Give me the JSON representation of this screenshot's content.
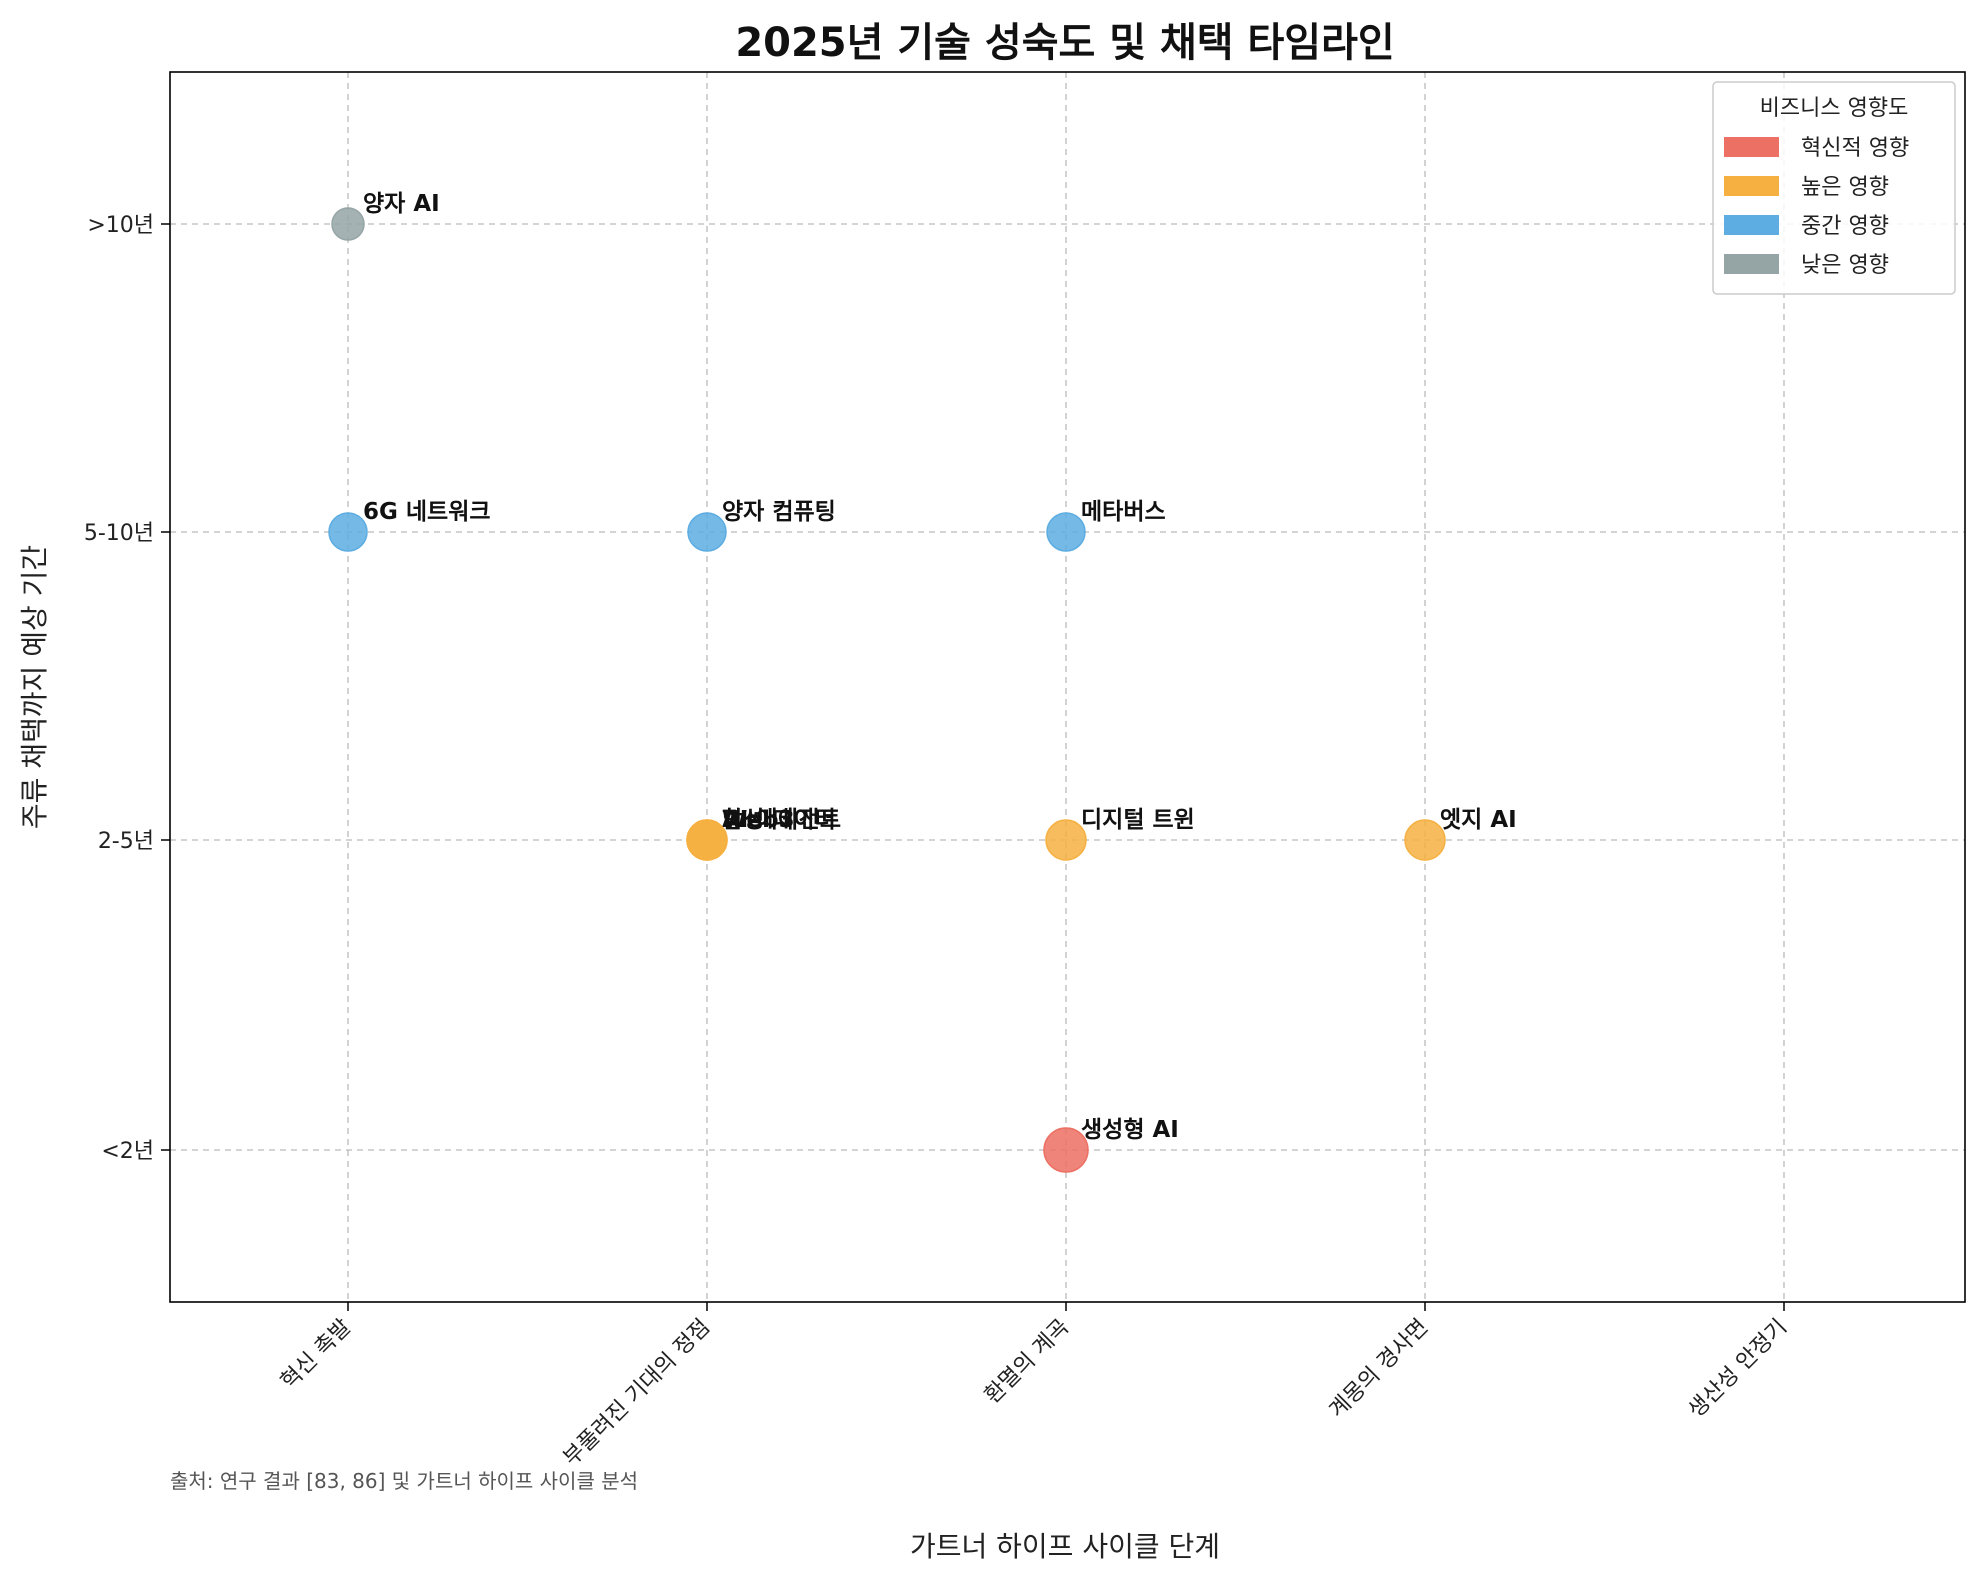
{
  "chart_data": {
    "type": "scatter",
    "title": "2025년 기술 성숙도 및 채택 타임라인",
    "xlabel": "가트너 하이프 사이클 단계",
    "ylabel": "주류 채택까지 예상 기간",
    "x_categories": [
      "혁신 촉발",
      "부풀려진 기대의 정점",
      "환멸의 계곡",
      "계몽의 경사면",
      "생산성 안정기"
    ],
    "y_categories": [
      "<2년",
      "2-5년",
      "5-10년",
      ">10년"
    ],
    "grid": true,
    "legend": {
      "title": "비즈니스 영향도",
      "placement": "top-right",
      "entries": [
        {
          "key": "transformational",
          "label": "혁신적 영향",
          "color": "#ec7063"
        },
        {
          "key": "high",
          "label": "높은 영향",
          "color": "#f5b041"
        },
        {
          "key": "moderate",
          "label": "중간 영향",
          "color": "#5dade2"
        },
        {
          "key": "low",
          "label": "낮은 영향",
          "color": "#95a5a6"
        }
      ]
    },
    "points": [
      {
        "label": "양자 AI",
        "x": "혁신 촉발",
        "y": ">10년",
        "impact": "low"
      },
      {
        "label": "6G 네트워크",
        "x": "혁신 촉발",
        "y": "5-10년",
        "impact": "moderate"
      },
      {
        "label": "양자 컴퓨팅",
        "x": "부풀려진 기대의 정점",
        "y": "5-10년",
        "impact": "moderate"
      },
      {
        "label": "메타버스",
        "x": "환멸의 계곡",
        "y": "5-10년",
        "impact": "moderate"
      },
      {
        "label": "AI 에이전트",
        "x": "부풀려진 기대의 정점",
        "y": "2-5년",
        "impact": "high"
      },
      {
        "label": "Web3",
        "x": "부풀려진 기대의 정점",
        "y": "2-5년",
        "impact": "high"
      },
      {
        "label": "합성 데이터",
        "x": "부풀려진 기대의 정점",
        "y": "2-5년",
        "impact": "high"
      },
      {
        "label": "디지털 트윈",
        "x": "환멸의 계곡",
        "y": "2-5년",
        "impact": "high"
      },
      {
        "label": "엣지 AI",
        "x": "계몽의 경사면",
        "y": "2-5년",
        "impact": "high"
      },
      {
        "label": "생성형 AI",
        "x": "환멸의 계곡",
        "y": "<2년",
        "impact": "transformational"
      }
    ]
  },
  "footnote": "출처: 연구 결과 [83, 86] 및 가트너 하이프 사이클 분석"
}
